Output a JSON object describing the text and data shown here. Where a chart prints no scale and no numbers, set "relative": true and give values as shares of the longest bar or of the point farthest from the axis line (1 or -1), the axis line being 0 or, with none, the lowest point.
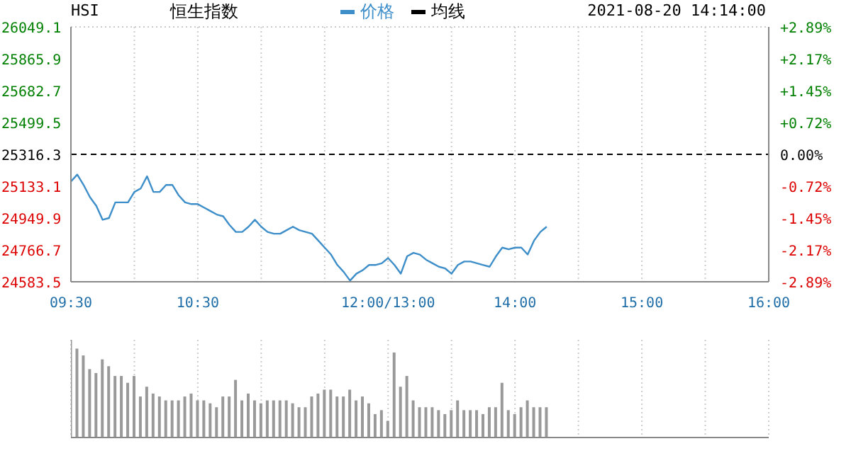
{
  "chart_data": [
    {
      "type": "line",
      "title": "恒生指数",
      "annotations": [
        "HSI",
        "2021-08-20 14:14:00"
      ],
      "legend": "top",
      "grid": true,
      "marker": "none",
      "categories": [
        "09:30",
        null,
        null,
        null,
        null,
        null,
        null,
        null,
        null,
        null,
        null,
        null,
        null,
        null,
        null,
        null,
        null,
        null,
        null,
        null,
        "10:30",
        null,
        null,
        null,
        null,
        null,
        null,
        null,
        null,
        null,
        null,
        null,
        null,
        null,
        null,
        null,
        null,
        null,
        null,
        null,
        null,
        null,
        null,
        null,
        null,
        null,
        null,
        null,
        null,
        null,
        "12:00/13:00",
        null,
        null,
        null,
        null,
        null,
        null,
        null,
        null,
        null,
        null,
        null,
        null,
        null,
        null,
        null,
        null,
        null,
        null,
        null,
        "14:00",
        null,
        null,
        null,
        null,
        null,
        null,
        null,
        null,
        null,
        null,
        null,
        null,
        null,
        null,
        null,
        null,
        null,
        null,
        null,
        "15:00",
        null,
        null,
        null,
        null,
        null,
        null,
        null,
        null,
        null,
        null,
        null,
        null,
        null,
        null,
        null,
        null,
        null,
        null,
        null,
        "16:00"
      ],
      "ylim": [
        24583.5,
        26049.1
      ],
      "yticks": [
        24583.5,
        24766.7,
        24949.9,
        25133.1,
        25316.3,
        25499.5,
        25682.7,
        25865.9,
        26049.1
      ],
      "y2lim": [
        -2.89,
        2.89
      ],
      "y2ticks": [
        {
          "value": -2.89,
          "label": "-2.89%"
        },
        {
          "value": -2.17,
          "label": "-2.17%"
        },
        {
          "value": -1.45,
          "label": "-1.45%"
        },
        {
          "value": -0.72,
          "label": "-0.72%"
        },
        {
          "value": 0,
          "label": "0.00%"
        },
        {
          "value": 0.72,
          "label": "+0.72%"
        },
        {
          "value": 1.45,
          "label": "+1.45%"
        },
        {
          "value": 2.17,
          "label": "+2.17%"
        },
        {
          "value": 2.89,
          "label": "+2.89%"
        }
      ],
      "ref_lines": [
        {
          "axis": "y",
          "value": 25316.3,
          "color": "#000000",
          "line_style": "dashed"
        }
      ],
      "series": [
        {
          "name": "价格",
          "color": "#3d8ec9",
          "values": [
            25160,
            25200,
            25140,
            25070,
            25020,
            24940,
            24950,
            25040,
            25040,
            25040,
            25100,
            25120,
            25190,
            25100,
            25100,
            25140,
            25140,
            25080,
            25040,
            25030,
            25030,
            25010,
            24990,
            24970,
            24960,
            24910,
            24870,
            24870,
            24900,
            24940,
            24900,
            24870,
            24860,
            24860,
            24880,
            24900,
            24880,
            24870,
            24860,
            24820,
            24780,
            24740,
            24680,
            24640,
            24590,
            24630,
            24650,
            24680,
            24680,
            24690,
            24720,
            24680,
            24630,
            24730,
            24750,
            24740,
            24710,
            24690,
            24670,
            24660,
            24630,
            24680,
            24700,
            24700,
            24690,
            24680,
            24670,
            24730,
            24780,
            24770,
            24780,
            24780,
            24740,
            24820,
            24870,
            24900,
            null,
            null,
            null,
            null,
            null,
            null,
            null,
            null,
            null,
            null,
            null,
            null,
            null,
            null,
            null,
            null,
            null,
            null,
            null,
            null,
            null,
            null,
            null,
            null,
            null,
            null,
            null,
            null,
            null,
            null,
            null,
            null,
            null,
            null,
            null
          ]
        },
        {
          "name": "均线",
          "color": "#000000",
          "values": [
            null,
            null,
            null,
            null,
            null,
            null,
            null,
            null,
            null,
            null,
            null,
            null,
            null,
            null,
            null,
            null,
            null,
            null,
            null,
            null,
            null,
            null,
            null,
            null,
            null,
            null,
            null,
            null,
            null,
            null,
            null,
            null,
            null,
            null,
            null,
            null,
            null,
            null,
            null,
            null,
            null,
            null,
            null,
            null,
            null,
            null,
            null,
            null,
            null,
            null,
            null,
            null,
            null,
            null,
            null,
            null,
            null,
            null,
            null,
            null,
            null,
            null,
            null,
            null,
            null,
            null,
            null,
            null,
            null,
            null,
            null,
            null,
            null,
            null,
            null,
            null,
            null,
            null,
            null,
            null,
            null,
            null,
            null,
            null,
            null,
            null,
            null,
            null,
            null,
            null,
            null,
            null,
            null,
            null,
            null,
            null,
            null,
            null,
            null,
            null,
            null,
            null,
            null,
            null,
            null,
            null,
            null,
            null,
            null,
            null,
            null
          ]
        }
      ]
    },
    {
      "type": "bar",
      "relative": true,
      "color": "#999999",
      "grid": "x",
      "categories": [
        null,
        null,
        null,
        null,
        null,
        null,
        null,
        null,
        null,
        null,
        null,
        null,
        null,
        null,
        null,
        null,
        null,
        null,
        null,
        null,
        null,
        null,
        null,
        null,
        null,
        null,
        null,
        null,
        null,
        null,
        null,
        null,
        null,
        null,
        null,
        null,
        null,
        null,
        null,
        null,
        null,
        null,
        null,
        null,
        null,
        null,
        null,
        null,
        null,
        null,
        null,
        null,
        null,
        null,
        null,
        null,
        null,
        null,
        null,
        null,
        null,
        null,
        null,
        null,
        null,
        null,
        null,
        null,
        null,
        null,
        null,
        null,
        null,
        null,
        null,
        null,
        null,
        null,
        null,
        null,
        null,
        null,
        null,
        null,
        null,
        null,
        null,
        null,
        null,
        null,
        null,
        null,
        null,
        null,
        null,
        null,
        null,
        null,
        null,
        null,
        null,
        null,
        null,
        null,
        null,
        null,
        null,
        null,
        null,
        null,
        null
      ],
      "values": [
        1.0,
        0.91,
        0.84,
        0.7,
        0.66,
        0.8,
        0.73,
        0.63,
        0.63,
        0.56,
        0.63,
        0.42,
        0.52,
        0.45,
        0.42,
        0.38,
        0.38,
        0.38,
        0.42,
        0.45,
        0.38,
        0.38,
        0.35,
        0.31,
        0.42,
        0.42,
        0.59,
        0.38,
        0.45,
        0.38,
        0.35,
        0.38,
        0.38,
        0.38,
        0.38,
        0.35,
        0.31,
        0.31,
        0.42,
        0.45,
        0.49,
        0.49,
        0.42,
        0.42,
        0.49,
        0.38,
        0.42,
        0.35,
        0.24,
        0.28,
        0.17,
        0.87,
        0.52,
        0.63,
        0.38,
        0.31,
        0.31,
        0.31,
        0.28,
        0.24,
        0.28,
        0.38,
        0.28,
        0.28,
        0.28,
        0.24,
        0.31,
        0.31,
        0.56,
        0.28,
        0.24,
        0.31,
        0.38,
        0.31,
        0.31,
        0.31,
        null,
        null,
        null,
        null,
        null,
        null,
        null,
        null,
        null,
        null,
        null,
        null,
        null,
        null,
        null,
        null,
        null,
        null,
        null,
        null,
        null,
        null,
        null,
        null,
        null,
        null,
        null,
        null,
        null,
        null,
        null,
        null,
        null,
        null,
        null
      ]
    }
  ]
}
